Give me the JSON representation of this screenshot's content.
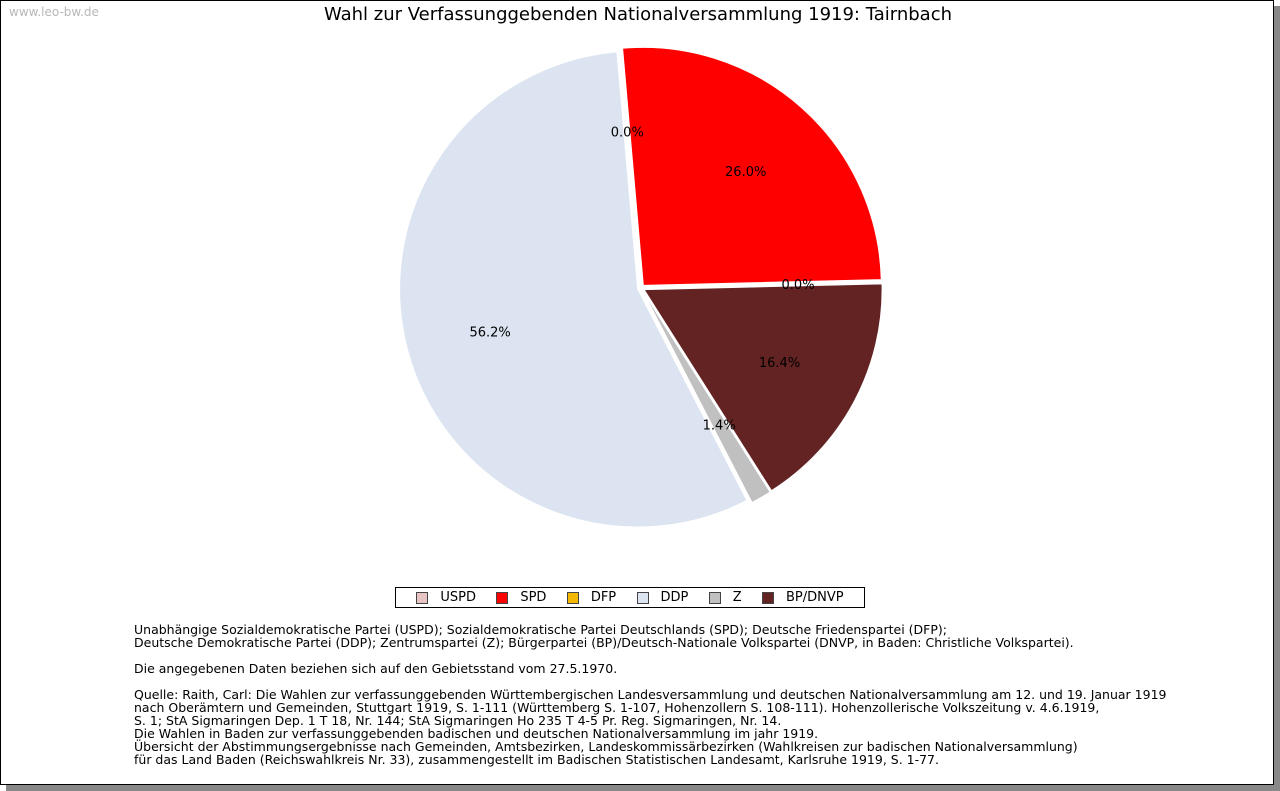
{
  "watermark": "www.leo-bw.de",
  "chart_data": {
    "type": "pie",
    "title": "Wahl zur Verfassunggebenden Nationalversammlung 1919: Tairnbach",
    "legend_position": "bottom",
    "slices": [
      {
        "name": "USPD",
        "value": 0.0,
        "label": "0.0%",
        "color": "#e8c4c4"
      },
      {
        "name": "SPD",
        "value": 26.0,
        "label": "26.0%",
        "color": "#ff0000"
      },
      {
        "name": "DFP",
        "value": 0.0,
        "label": "0.0%",
        "color": "#f5b800"
      },
      {
        "name": "BP/DNVP",
        "value": 16.4,
        "label": "16.4%",
        "color": "#632323"
      },
      {
        "name": "Z",
        "value": 1.4,
        "label": "1.4%",
        "color": "#c0c0c0"
      },
      {
        "name": "DDP",
        "value": 56.2,
        "label": "56.2%",
        "color": "#dbe4f0"
      }
    ],
    "legend": [
      {
        "name": "USPD",
        "color": "#e8c4c4"
      },
      {
        "name": "SPD",
        "color": "#ff0000"
      },
      {
        "name": "DFP",
        "color": "#f5b800"
      },
      {
        "name": "DDP",
        "color": "#dbe4f0"
      },
      {
        "name": "Z",
        "color": "#c0c0c0"
      },
      {
        "name": "BP/DNVP",
        "color": "#632323"
      }
    ]
  },
  "notes": {
    "parties_1": "Unabhängige Sozialdemokratische Partei (USPD); Sozialdemokratische Partei Deutschlands (SPD); Deutsche Friedenspartei (DFP);",
    "parties_2": "Deutsche Demokratische Partei (DDP); Zentrumspartei (Z); Bürgerpartei (BP)/Deutsch-Nationale Volkspartei (DNVP, in Baden: Christliche Volkspartei).",
    "territory": "Die angegebenen Daten beziehen sich auf den Gebietsstand vom 27.5.1970.",
    "source_1": "Quelle: Raith, Carl: Die Wahlen zur verfassunggebenden Württembergischen Landesversammlung und deutschen Nationalversammlung am 12. und 19. Januar 1919",
    "source_2": "nach Oberämtern und Gemeinden, Stuttgart 1919, S. 1-111 (Württemberg S. 1-107, Hohenzollern S. 108-111). Hohenzollerische Volkszeitung v. 4.6.1919,",
    "source_3": "S. 1; StA Sigmaringen Dep. 1 T 18, Nr. 144; StA Sigmaringen Ho 235 T 4-5 Pr. Reg. Sigmaringen, Nr. 14.",
    "source_4": "Die Wahlen in Baden zur verfassunggebenden badischen und deutschen Nationalversammlung im jahr 1919.",
    "source_5": "Übersicht der Abstimmungsergebnisse nach Gemeinden, Amtsbezirken, Landeskommissärbezirken (Wahlkreisen zur badischen Nationalversammlung)",
    "source_6": "für das Land Baden (Reichswahlkreis Nr. 33), zusammengestellt im Badischen Statistischen Landesamt, Karlsruhe 1919, S. 1-77."
  }
}
